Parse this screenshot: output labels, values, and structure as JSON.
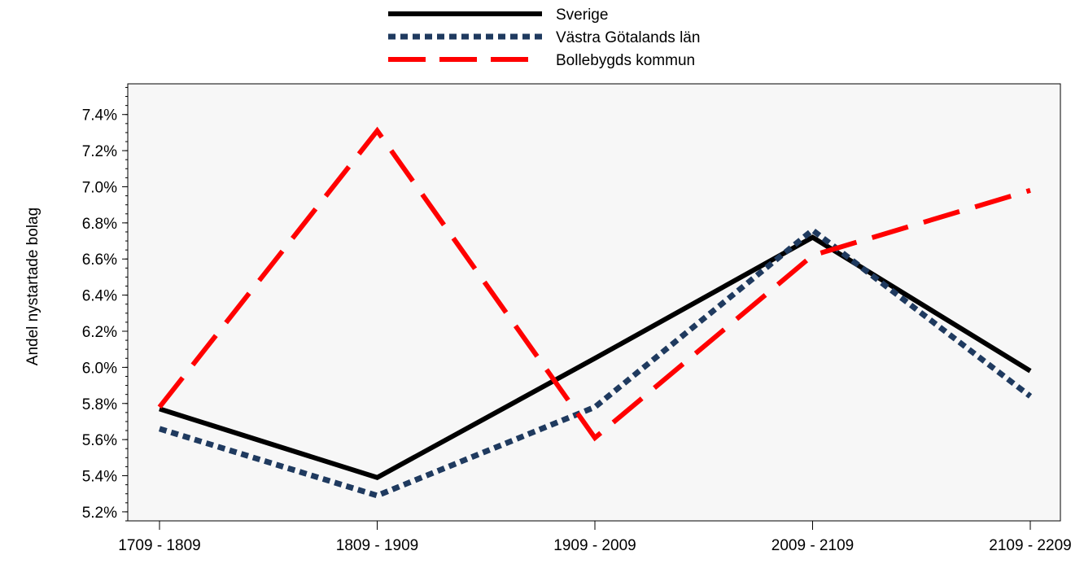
{
  "chart_data": {
    "type": "line",
    "categories": [
      "1709 - 1809",
      "1809 - 1909",
      "1909 - 2009",
      "2009 - 2109",
      "2109 - 2209"
    ],
    "ylabel": "Andel nystartade bolag",
    "xlabel": "",
    "ylim": [
      0.0515,
      0.0757
    ],
    "yticks": [
      0.052,
      0.054,
      0.056,
      0.058,
      0.06,
      0.062,
      0.064,
      0.066,
      0.068,
      0.07,
      0.072,
      0.074
    ],
    "ytick_labels": [
      "5.2%",
      "5.4%",
      "5.6%",
      "5.8%",
      "6.0%",
      "6.2%",
      "6.4%",
      "6.6%",
      "6.8%",
      "7.0%",
      "7.2%",
      "7.4%"
    ],
    "legend_position": "top-center",
    "grid": false,
    "plot_background": "#f7f7f7",
    "series": [
      {
        "name": "Sverige",
        "values": [
          0.0577,
          0.0539,
          0.0605,
          0.0672,
          0.0598
        ],
        "color": "#000000",
        "style": "solid"
      },
      {
        "name": "Västra Götalands län",
        "values": [
          0.0566,
          0.0529,
          0.0578,
          0.0676,
          0.0584
        ],
        "color": "#1f3a5f",
        "style": "dotted"
      },
      {
        "name": "Bollebygds kommun",
        "values": [
          0.0578,
          0.0731,
          0.0561,
          0.0662,
          0.0698
        ],
        "color": "#ff0000",
        "style": "dashed"
      }
    ]
  }
}
